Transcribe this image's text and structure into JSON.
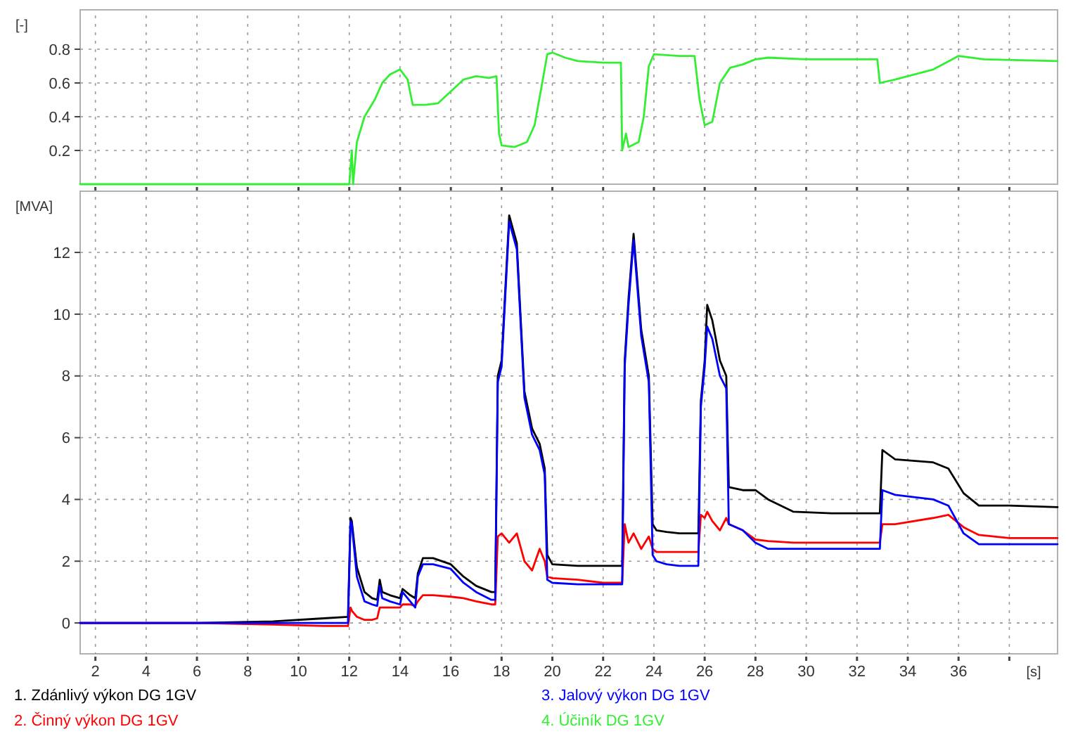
{
  "chart_data": [
    {
      "type": "line",
      "ylabel": "[-]",
      "xlim": [
        1.4,
        39.9
      ],
      "ylim": [
        0,
        1
      ],
      "xticks": [
        2,
        4,
        6,
        8,
        10,
        12,
        14,
        16,
        18,
        20,
        22,
        24,
        26,
        28,
        30,
        32,
        34,
        36,
        {
          "value": 38,
          "label": null
        }
      ],
      "yticks": [
        0.2,
        0.4,
        0.6,
        0.8
      ],
      "grid": true,
      "legend": "bottom",
      "tick_labels": "y",
      "series": [
        {
          "name": "4. Účiník DG 1GV",
          "color": "#33ee33",
          "x": [
            1.4,
            12.0,
            12.1,
            12.15,
            12.3,
            12.6,
            13.0,
            13.3,
            13.6,
            14.0,
            14.3,
            14.5,
            15.0,
            15.5,
            16.0,
            16.5,
            17.0,
            17.5,
            17.8,
            17.9,
            18.0,
            18.5,
            19.0,
            19.3,
            19.6,
            19.8,
            20.0,
            20.5,
            21.0,
            22.0,
            22.7,
            22.75,
            22.9,
            23.0,
            23.4,
            23.6,
            23.8,
            24.0,
            25.0,
            25.6,
            25.8,
            26.0,
            26.3,
            26.6,
            27.0,
            27.5,
            28.0,
            28.5,
            30.0,
            32.8,
            32.9,
            33.5,
            35.0,
            35.5,
            36.0,
            37.0,
            39.9
          ],
          "values": [
            0,
            0,
            0.2,
            0,
            0.25,
            0.4,
            0.5,
            0.6,
            0.65,
            0.68,
            0.62,
            0.47,
            0.47,
            0.48,
            0.55,
            0.62,
            0.64,
            0.63,
            0.64,
            0.3,
            0.23,
            0.22,
            0.25,
            0.35,
            0.6,
            0.77,
            0.78,
            0.75,
            0.73,
            0.72,
            0.72,
            0.2,
            0.3,
            0.22,
            0.25,
            0.4,
            0.7,
            0.77,
            0.76,
            0.76,
            0.5,
            0.35,
            0.37,
            0.6,
            0.69,
            0.71,
            0.74,
            0.75,
            0.74,
            0.74,
            0.6,
            0.62,
            0.68,
            0.72,
            0.76,
            0.74,
            0.73
          ]
        }
      ]
    },
    {
      "type": "line",
      "ylabel": "[MVA]",
      "xlabel": "[s]",
      "xlim": [
        1.4,
        39.9
      ],
      "ylim": [
        -1,
        13.8
      ],
      "xticks": [
        2,
        4,
        6,
        8,
        10,
        12,
        14,
        16,
        18,
        20,
        22,
        24,
        26,
        28,
        30,
        32,
        34,
        36,
        {
          "value": 38,
          "label": null
        }
      ],
      "yticks": [
        0,
        2,
        4,
        6,
        8,
        10,
        12
      ],
      "grid": true,
      "legend": "bottom",
      "x": [
        1.4,
        6,
        9,
        11,
        11.95,
        12.05,
        12.1,
        12.3,
        12.6,
        12.9,
        13.1,
        13.2,
        13.3,
        13.6,
        14.0,
        14.1,
        14.4,
        14.6,
        14.7,
        14.9,
        15.3,
        16.0,
        16.5,
        17.0,
        17.6,
        17.75,
        17.85,
        18.0,
        18.3,
        18.6,
        18.9,
        19.2,
        19.5,
        19.7,
        19.8,
        20.0,
        21.0,
        22.0,
        22.75,
        22.85,
        23.0,
        23.2,
        23.5,
        23.8,
        23.95,
        24.1,
        24.5,
        25.0,
        25.75,
        25.85,
        26.0,
        26.1,
        26.3,
        26.6,
        26.85,
        26.95,
        27.5,
        28.0,
        28.5,
        29.5,
        31.0,
        32.9,
        33.0,
        33.5,
        35.0,
        35.6,
        36.2,
        36.8,
        38.0,
        39.9
      ],
      "series": [
        {
          "name": "1. Zdánlivý výkon DG 1GV",
          "color": "#000000",
          "values": [
            0,
            0,
            0.05,
            0.15,
            0.2,
            3.4,
            3.3,
            1.8,
            1.0,
            0.8,
            0.75,
            1.4,
            1.0,
            0.9,
            0.8,
            1.1,
            0.9,
            0.8,
            1.6,
            2.1,
            2.1,
            1.9,
            1.5,
            1.2,
            1.0,
            1.0,
            8.0,
            8.5,
            13.2,
            12.3,
            7.5,
            6.3,
            5.8,
            5.0,
            2.2,
            1.9,
            1.85,
            1.85,
            1.85,
            8.5,
            10.5,
            12.6,
            9.5,
            8.0,
            3.2,
            3.0,
            2.95,
            2.9,
            2.9,
            7.2,
            8.5,
            10.3,
            9.8,
            8.5,
            8.0,
            4.4,
            4.3,
            4.3,
            4.0,
            3.6,
            3.55,
            3.55,
            5.6,
            5.3,
            5.2,
            5.0,
            4.2,
            3.8,
            3.8,
            3.75
          ]
        },
        {
          "name": "2. Činný výkon DG 1GV",
          "color": "#ff0000",
          "values": [
            0,
            0,
            -0.05,
            -0.1,
            -0.1,
            0.5,
            0.4,
            0.2,
            0.1,
            0.1,
            0.15,
            0.5,
            0.5,
            0.5,
            0.5,
            0.6,
            0.6,
            0.55,
            0.7,
            0.9,
            0.9,
            0.85,
            0.8,
            0.7,
            0.6,
            0.6,
            2.8,
            2.9,
            2.6,
            2.9,
            2.0,
            1.7,
            2.4,
            2.0,
            1.5,
            1.45,
            1.4,
            1.3,
            1.3,
            3.2,
            2.6,
            2.9,
            2.4,
            2.8,
            2.4,
            2.3,
            2.3,
            2.3,
            2.3,
            3.5,
            3.4,
            3.6,
            3.3,
            3.0,
            3.4,
            3.2,
            3.0,
            2.7,
            2.65,
            2.6,
            2.6,
            2.6,
            3.2,
            3.2,
            3.4,
            3.5,
            3.1,
            2.85,
            2.75,
            2.75
          ]
        },
        {
          "name": "3. Jalový výkon DG 1GV",
          "color": "#0000ff",
          "values": [
            0,
            0,
            0,
            0,
            0,
            3.3,
            3.2,
            1.5,
            0.7,
            0.6,
            0.55,
            1.2,
            0.8,
            0.7,
            0.6,
            1.0,
            0.7,
            0.5,
            1.5,
            1.9,
            1.9,
            1.75,
            1.3,
            1.0,
            0.75,
            0.75,
            7.8,
            8.3,
            13.0,
            12.1,
            7.3,
            6.1,
            5.6,
            4.8,
            1.4,
            1.3,
            1.25,
            1.25,
            1.25,
            8.3,
            10.3,
            12.4,
            9.3,
            7.8,
            2.2,
            2.0,
            1.9,
            1.85,
            1.85,
            7.0,
            8.3,
            9.6,
            9.2,
            8.0,
            7.6,
            3.2,
            3.0,
            2.6,
            2.4,
            2.4,
            2.4,
            2.4,
            4.3,
            4.15,
            4.0,
            3.8,
            2.9,
            2.55,
            2.55,
            2.55
          ]
        }
      ]
    }
  ]
}
